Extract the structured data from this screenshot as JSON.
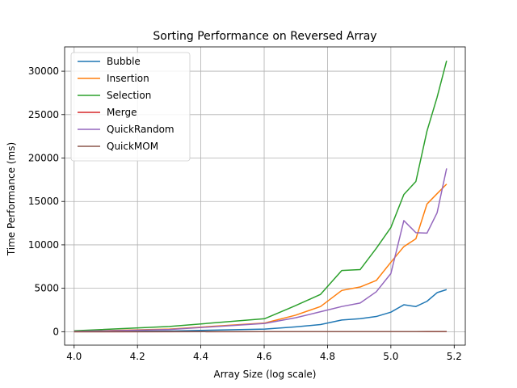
{
  "chart_data": {
    "type": "line",
    "title": "Sorting Performance on Reversed Array",
    "xlabel": "Array Size (log scale)",
    "ylabel": "Time Performance (ms)",
    "xlim": [
      3.97,
      5.235
    ],
    "ylim": [
      -1550,
      32800
    ],
    "xticks": [
      4.0,
      4.2,
      4.4,
      4.6,
      4.8,
      5.0,
      5.2
    ],
    "xtick_labels": [
      "4.0",
      "4.2",
      "4.4",
      "4.6",
      "4.8",
      "5.0",
      "5.2"
    ],
    "yticks": [
      0,
      5000,
      10000,
      15000,
      20000,
      25000,
      30000
    ],
    "ytick_labels": [
      "0",
      "5000",
      "10000",
      "15000",
      "20000",
      "25000",
      "30000"
    ],
    "grid": true,
    "legend_position": "top-left",
    "x": [
      4.0,
      4.301,
      4.602,
      4.699,
      4.778,
      4.845,
      4.903,
      4.954,
      5.0,
      5.041,
      5.079,
      5.114,
      5.146,
      5.176
    ],
    "series": [
      {
        "name": "Bubble",
        "color": "#1f77b4",
        "values": [
          20,
          80,
          300,
          560,
          820,
          1350,
          1500,
          1750,
          2250,
          3100,
          2900,
          3500,
          4500,
          4850
        ]
      },
      {
        "name": "Insertion",
        "color": "#ff7f0e",
        "values": [
          40,
          300,
          1000,
          1900,
          2900,
          4750,
          5150,
          5900,
          8000,
          9800,
          10700,
          14700,
          15900,
          17000
        ]
      },
      {
        "name": "Selection",
        "color": "#2ca02c",
        "values": [
          100,
          600,
          1500,
          3000,
          4300,
          7050,
          7150,
          9600,
          12000,
          15800,
          17300,
          23100,
          27000,
          31200
        ]
      },
      {
        "name": "Merge",
        "color": "#d62728",
        "values": [
          2,
          3,
          5,
          6,
          6,
          7,
          8,
          8,
          9,
          10,
          10,
          11,
          12,
          12
        ]
      },
      {
        "name": "QuickRandom",
        "color": "#9467bd",
        "values": [
          30,
          250,
          950,
          1600,
          2300,
          2900,
          3300,
          4600,
          6700,
          12800,
          11400,
          11350,
          13700,
          18800
        ]
      },
      {
        "name": "QuickMOM",
        "color": "#8c564b",
        "values": [
          3,
          5,
          7,
          8,
          9,
          10,
          11,
          12,
          13,
          14,
          15,
          16,
          17,
          18
        ]
      }
    ]
  }
}
